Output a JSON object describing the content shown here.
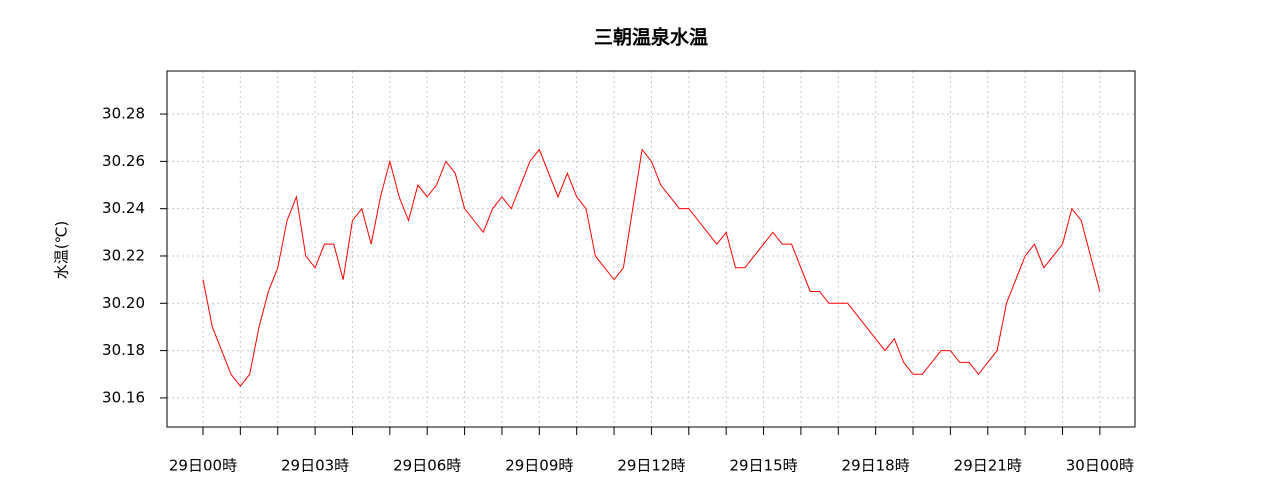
{
  "chart_data": {
    "type": "line",
    "title": "三朝温泉水温",
    "ylabel": "水温(℃)",
    "x": [
      0,
      0.25,
      0.5,
      0.75,
      1,
      1.25,
      1.5,
      1.75,
      2,
      2.25,
      2.5,
      2.75,
      3,
      3.25,
      3.5,
      3.75,
      4,
      4.25,
      4.5,
      4.75,
      5,
      5.25,
      5.5,
      5.75,
      6,
      6.25,
      6.5,
      6.75,
      7,
      7.25,
      7.5,
      7.75,
      8,
      8.25,
      8.5,
      8.75,
      9,
      9.25,
      9.5,
      9.75,
      10,
      10.25,
      10.5,
      10.75,
      11,
      11.25,
      11.5,
      11.75,
      12,
      12.25,
      12.5,
      12.75,
      13,
      13.25,
      13.5,
      13.75,
      14,
      14.25,
      14.5,
      14.75,
      15,
      15.25,
      15.5,
      15.75,
      16,
      16.25,
      16.5,
      16.75,
      17,
      17.25,
      17.5,
      17.75,
      18,
      18.25,
      18.5,
      18.75,
      19,
      19.25,
      19.5,
      19.75,
      20,
      20.25,
      20.5,
      20.75,
      21,
      21.25,
      21.5,
      21.75,
      22,
      22.25,
      22.5,
      22.75,
      23,
      23.25,
      23.5,
      23.75,
      24
    ],
    "series": [
      {
        "name": "水温",
        "color": "#ff0000",
        "values": [
          30.21,
          30.19,
          30.18,
          30.17,
          30.165,
          30.17,
          30.19,
          30.205,
          30.215,
          30.235,
          30.245,
          30.22,
          30.215,
          30.225,
          30.225,
          30.21,
          30.235,
          30.24,
          30.225,
          30.245,
          30.26,
          30.245,
          30.235,
          30.25,
          30.245,
          30.25,
          30.26,
          30.255,
          30.24,
          30.235,
          30.23,
          30.24,
          30.245,
          30.24,
          30.25,
          30.26,
          30.265,
          30.255,
          30.245,
          30.255,
          30.245,
          30.24,
          30.22,
          30.215,
          30.21,
          30.215,
          30.24,
          30.265,
          30.26,
          30.25,
          30.245,
          30.24,
          30.24,
          30.235,
          30.23,
          30.225,
          30.23,
          30.215,
          30.215,
          30.22,
          30.225,
          30.23,
          30.225,
          30.225,
          30.215,
          30.205,
          30.205,
          30.2,
          30.2,
          30.2,
          30.195,
          30.19,
          30.185,
          30.18,
          30.185,
          30.175,
          30.17,
          30.17,
          30.175,
          30.18,
          30.18,
          30.175,
          30.175,
          30.17,
          30.175,
          30.18,
          30.2,
          30.21,
          30.22,
          30.225,
          30.215,
          30.22,
          30.225,
          30.24,
          30.235,
          30.22,
          30.205
        ]
      }
    ],
    "xlim": [
      -0.963,
      24.94
    ],
    "xticks": [
      {
        "value": 0,
        "label": "29日00時"
      },
      {
        "value": 3,
        "label": "29日03時"
      },
      {
        "value": 6,
        "label": "29日06時"
      },
      {
        "value": 9,
        "label": "29日09時"
      },
      {
        "value": 12,
        "label": "29日12時"
      },
      {
        "value": 15,
        "label": "29日15時"
      },
      {
        "value": 18,
        "label": "29日18時"
      },
      {
        "value": 21,
        "label": "29日21時"
      },
      {
        "value": 24,
        "label": "30日00時"
      }
    ],
    "xminor_ticks": [
      1,
      2,
      4,
      5,
      7,
      8,
      10,
      11,
      13,
      14,
      16,
      17,
      19,
      20,
      22,
      23
    ],
    "ylim": [
      30.1477,
      30.2982
    ],
    "yticks": [
      {
        "value": 30.16,
        "label": "30.16"
      },
      {
        "value": 30.18,
        "label": "30.18"
      },
      {
        "value": 30.2,
        "label": "30.20"
      },
      {
        "value": 30.22,
        "label": "30.22"
      },
      {
        "value": 30.24,
        "label": "30.24"
      },
      {
        "value": 30.26,
        "label": "30.26"
      },
      {
        "value": 30.28,
        "label": "30.28"
      }
    ],
    "grid": true
  }
}
